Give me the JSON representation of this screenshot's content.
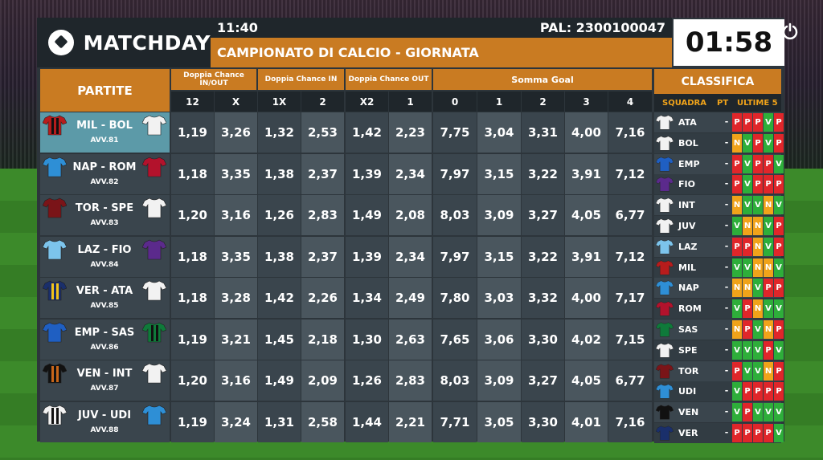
{
  "brand": {
    "name": "MATCHDAY"
  },
  "header": {
    "time": "11:40",
    "pal": "PAL: 2300100047",
    "title": "CAMPIONATO DI CALCIO - GIORNATA",
    "countdown": "01:58"
  },
  "columns": {
    "partite": "PARTITE",
    "dc_inout": "Doppia Chance IN/OUT",
    "dc_in": "Doppia Chance IN",
    "dc_out": "Doppia Chance OUT",
    "somma_goal": "Somma Goal",
    "sub": [
      "12",
      "X",
      "1X",
      "2",
      "X2",
      "1",
      "0",
      "1",
      "2",
      "3",
      "4"
    ]
  },
  "matches": [
    {
      "name": "MIL - BOL",
      "code": "AVV.81",
      "selected": true,
      "home_color": "#b71c1c",
      "home_stripe": "#111111",
      "away_color": "#f2f2f2",
      "away_stripe": "#f2f2f2",
      "odds": [
        "1,19",
        "3,26",
        "1,32",
        "2,53",
        "1,42",
        "2,23",
        "7,75",
        "3,04",
        "3,31",
        "4,00",
        "7,16"
      ]
    },
    {
      "name": "NAP - ROM",
      "code": "AVV.82",
      "selected": false,
      "home_color": "#2e8fd6",
      "home_stripe": "#2e8fd6",
      "away_color": "#b3122c",
      "away_stripe": "#b3122c",
      "odds": [
        "1,18",
        "3,35",
        "1,38",
        "2,37",
        "1,39",
        "2,34",
        "7,97",
        "3,15",
        "3,22",
        "3,91",
        "7,12"
      ]
    },
    {
      "name": "TOR - SPE",
      "code": "AVV.83",
      "selected": false,
      "home_color": "#7a1418",
      "home_stripe": "#7a1418",
      "away_color": "#f2f2f2",
      "away_stripe": "#f2f2f2",
      "odds": [
        "1,20",
        "3,16",
        "1,26",
        "2,83",
        "1,49",
        "2,08",
        "8,03",
        "3,09",
        "3,27",
        "4,05",
        "6,77"
      ]
    },
    {
      "name": "LAZ - FIO",
      "code": "AVV.84",
      "selected": false,
      "home_color": "#7cc4ec",
      "home_stripe": "#7cc4ec",
      "away_color": "#5b2a8c",
      "away_stripe": "#5b2a8c",
      "odds": [
        "1,18",
        "3,35",
        "1,38",
        "2,37",
        "1,39",
        "2,34",
        "7,97",
        "3,15",
        "3,22",
        "3,91",
        "7,12"
      ]
    },
    {
      "name": "VER - ATA",
      "code": "AVV.85",
      "selected": false,
      "home_color": "#1a2f6b",
      "home_stripe": "#f2c41a",
      "away_color": "#f2f2f2",
      "away_stripe": "#f2f2f2",
      "odds": [
        "1,18",
        "3,28",
        "1,42",
        "2,26",
        "1,34",
        "2,49",
        "7,80",
        "3,03",
        "3,32",
        "4,00",
        "7,17"
      ]
    },
    {
      "name": "EMP - SAS",
      "code": "AVV.86",
      "selected": false,
      "home_color": "#1f5fc2",
      "home_stripe": "#1f5fc2",
      "away_color": "#0f7a3a",
      "away_stripe": "#111111",
      "odds": [
        "1,19",
        "3,21",
        "1,45",
        "2,18",
        "1,30",
        "2,63",
        "7,65",
        "3,06",
        "3,30",
        "4,02",
        "7,15"
      ]
    },
    {
      "name": "VEN - INT",
      "code": "AVV.87",
      "selected": false,
      "home_color": "#111111",
      "home_stripe": "#c8661a",
      "away_color": "#f2f2f2",
      "away_stripe": "#f2f2f2",
      "odds": [
        "1,20",
        "3,16",
        "1,49",
        "2,09",
        "1,26",
        "2,83",
        "8,03",
        "3,09",
        "3,27",
        "4,05",
        "6,77"
      ]
    },
    {
      "name": "JUV - UDI",
      "code": "AVV.88",
      "selected": false,
      "home_color": "#f2f2f2",
      "home_stripe": "#111111",
      "away_color": "#2e8fd6",
      "away_stripe": "#2e8fd6",
      "odds": [
        "1,19",
        "3,24",
        "1,31",
        "2,58",
        "1,44",
        "2,21",
        "7,71",
        "3,05",
        "3,30",
        "4,01",
        "7,16"
      ]
    }
  ],
  "standings": {
    "title": "CLASSIFICA",
    "col_team": "SQUADRA",
    "col_pt": "PT",
    "col_form": "ULTIME 5",
    "rows": [
      {
        "team": "ATA",
        "pt": "-",
        "color": "#f2f2f2",
        "form": [
          "P",
          "P",
          "P",
          "V",
          "P"
        ]
      },
      {
        "team": "BOL",
        "pt": "-",
        "color": "#f2f2f2",
        "form": [
          "N",
          "V",
          "P",
          "V",
          "P"
        ]
      },
      {
        "team": "EMP",
        "pt": "-",
        "color": "#1f5fc2",
        "form": [
          "P",
          "V",
          "P",
          "P",
          "V"
        ]
      },
      {
        "team": "FIO",
        "pt": "-",
        "color": "#5b2a8c",
        "form": [
          "P",
          "V",
          "P",
          "P",
          "P"
        ]
      },
      {
        "team": "INT",
        "pt": "-",
        "color": "#f2f2f2",
        "form": [
          "N",
          "V",
          "V",
          "N",
          "V"
        ]
      },
      {
        "team": "JUV",
        "pt": "-",
        "color": "#f2f2f2",
        "form": [
          "V",
          "N",
          "N",
          "V",
          "P"
        ]
      },
      {
        "team": "LAZ",
        "pt": "-",
        "color": "#7cc4ec",
        "form": [
          "P",
          "P",
          "N",
          "V",
          "P"
        ]
      },
      {
        "team": "MIL",
        "pt": "-",
        "color": "#b71c1c",
        "form": [
          "V",
          "V",
          "N",
          "N",
          "V"
        ]
      },
      {
        "team": "NAP",
        "pt": "-",
        "color": "#2e8fd6",
        "form": [
          "N",
          "N",
          "V",
          "P",
          "P"
        ]
      },
      {
        "team": "ROM",
        "pt": "-",
        "color": "#b3122c",
        "form": [
          "V",
          "P",
          "N",
          "V",
          "V"
        ]
      },
      {
        "team": "SAS",
        "pt": "-",
        "color": "#0f7a3a",
        "form": [
          "N",
          "P",
          "V",
          "N",
          "P"
        ]
      },
      {
        "team": "SPE",
        "pt": "-",
        "color": "#f2f2f2",
        "form": [
          "V",
          "V",
          "V",
          "P",
          "V"
        ]
      },
      {
        "team": "TOR",
        "pt": "-",
        "color": "#7a1418",
        "form": [
          "P",
          "V",
          "V",
          "N",
          "P"
        ]
      },
      {
        "team": "UDI",
        "pt": "-",
        "color": "#2e8fd6",
        "form": [
          "V",
          "P",
          "P",
          "P",
          "P"
        ]
      },
      {
        "team": "VEN",
        "pt": "-",
        "color": "#111111",
        "form": [
          "V",
          "P",
          "V",
          "V",
          "V"
        ]
      },
      {
        "team": "VER",
        "pt": "-",
        "color": "#1a2f6b",
        "form": [
          "P",
          "P",
          "P",
          "P",
          "V"
        ]
      }
    ]
  }
}
